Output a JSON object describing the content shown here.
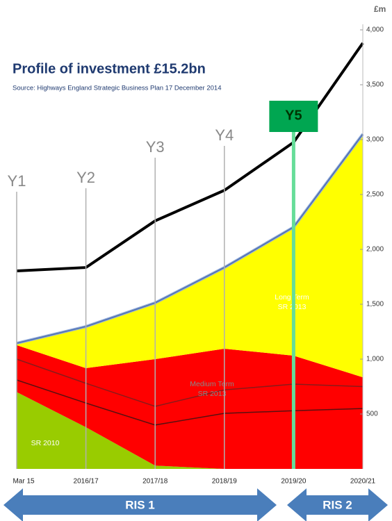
{
  "chart_data": {
    "type": "area",
    "stacked": true,
    "title": "Profile of investment £15.2bn",
    "subtitle": "Source: Highways England Strategic Business Plan 17 December 2014",
    "y_axis_label": "£m",
    "categories": [
      "Mar 15",
      "2016/17",
      "2017/18",
      "2018/19",
      "2019/20",
      "2020/21"
    ],
    "series": [
      {
        "name": "SR 2010",
        "color": "#99cc00",
        "values": [
          700,
          380,
          30,
          0,
          0,
          0
        ]
      },
      {
        "name": "Medium Term SR 2013",
        "color": "#ff0000",
        "values": [
          427,
          538,
          970,
          1095,
          1032,
          835
        ]
      },
      {
        "name": "Long Term SR 2013",
        "color": "#ffff00",
        "values": [
          18,
          379,
          513,
          740,
          1171,
          2215
        ]
      }
    ],
    "lines": [
      {
        "color": "#000000",
        "values": [
          1804,
          1835,
          2260,
          2538,
          2975,
          3880
        ]
      },
      {
        "color": "#8b1a1a",
        "values": [
          1000,
          780,
          570,
          720,
          772,
          750
        ]
      },
      {
        "color": "#5a1010",
        "values": [
          810,
          600,
          400,
          506,
          530,
          550
        ]
      }
    ],
    "year_markers": [
      "Y1",
      "Y2",
      "Y3",
      "Y4",
      "Y5"
    ],
    "periods": [
      "RIS 1",
      "RIS 2"
    ],
    "ylim": [
      0,
      4000
    ],
    "yticks": [
      500,
      {
        "value": 1000,
        "label": "1,000"
      },
      {
        "value": 1500,
        "label": "1,500"
      },
      {
        "value": 2000,
        "label": "2,000"
      },
      {
        "value": 2500,
        "label": "2,500"
      },
      {
        "value": 3000,
        "label": "3,000"
      },
      {
        "value": 3500,
        "label": "3,500"
      },
      {
        "value": 4000,
        "label": "4,000"
      }
    ]
  }
}
